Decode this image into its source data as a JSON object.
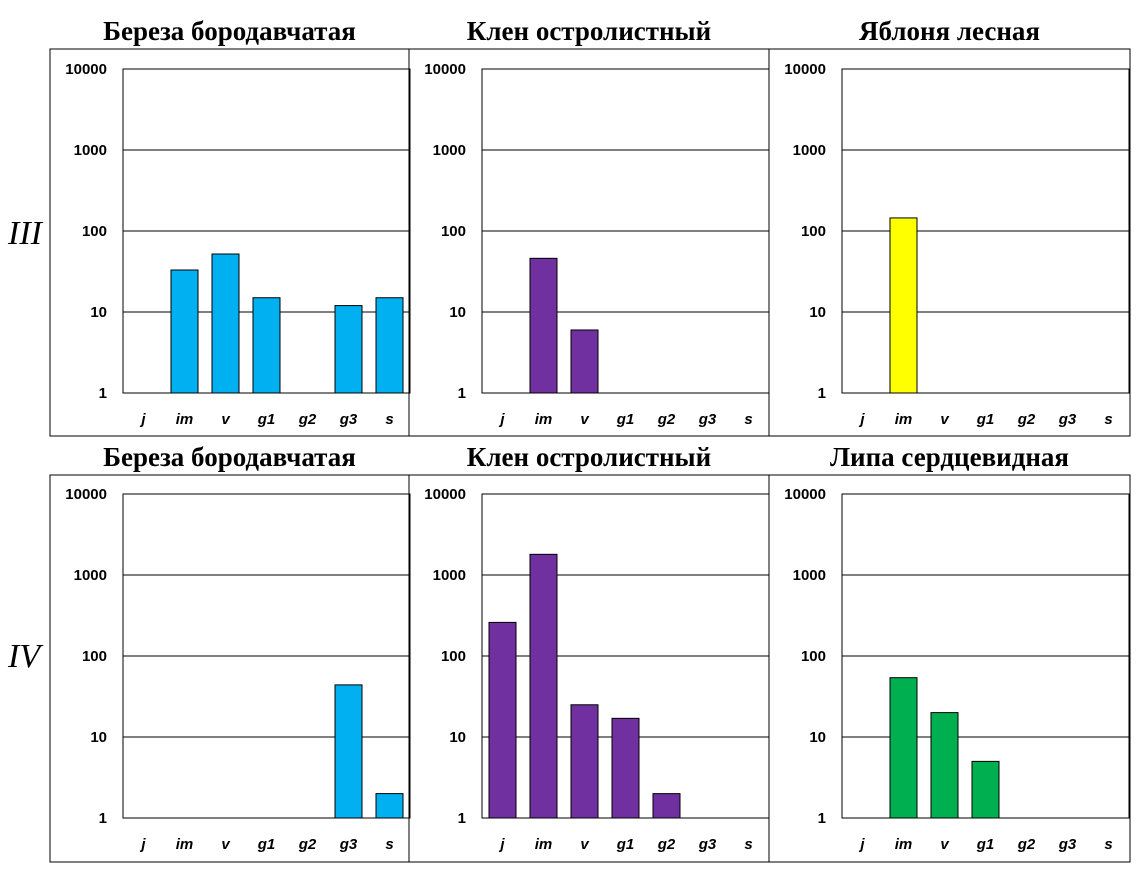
{
  "row_labels": [
    "III",
    "IV"
  ],
  "colors": {
    "blue": "#00b0f0",
    "purple": "#7030a0",
    "yellow": "#ffff00",
    "green": "#00b050",
    "bar_border": "#000000"
  },
  "chart_data": [
    {
      "type": "bar",
      "row": "III",
      "title": "Береза бородавчатая",
      "categories": [
        "j",
        "im",
        "v",
        "g1",
        "g2",
        "g3",
        "s"
      ],
      "values": [
        0,
        33,
        52,
        15,
        0,
        12,
        15
      ],
      "y_scale": "log",
      "ylim": [
        1,
        10000
      ],
      "yticks": [
        "1",
        "10",
        "100",
        "1000",
        "10000"
      ],
      "grid": true,
      "color": "#00b0f0"
    },
    {
      "type": "bar",
      "row": "III",
      "title": "Клен остролистный",
      "categories": [
        "j",
        "im",
        "v",
        "g1",
        "g2",
        "g3",
        "s"
      ],
      "values": [
        0,
        46,
        6,
        0,
        0,
        0,
        0
      ],
      "y_scale": "log",
      "ylim": [
        1,
        10000
      ],
      "yticks": [
        "1",
        "10",
        "100",
        "1000",
        "10000"
      ],
      "grid": true,
      "color": "#7030a0"
    },
    {
      "type": "bar",
      "row": "III",
      "title": "Яблоня лесная",
      "categories": [
        "j",
        "im",
        "v",
        "g1",
        "g2",
        "g3",
        "s"
      ],
      "values": [
        0,
        145,
        0,
        0,
        0,
        0,
        0
      ],
      "y_scale": "log",
      "ylim": [
        1,
        10000
      ],
      "yticks": [
        "1",
        "10",
        "100",
        "1000",
        "10000"
      ],
      "grid": true,
      "color": "#ffff00"
    },
    {
      "type": "bar",
      "row": "IV",
      "title": "Береза бородавчатая",
      "categories": [
        "j",
        "im",
        "v",
        "g1",
        "g2",
        "g3",
        "s"
      ],
      "values": [
        0,
        0,
        0,
        0,
        0,
        44,
        2
      ],
      "y_scale": "log",
      "ylim": [
        1,
        10000
      ],
      "yticks": [
        "1",
        "10",
        "100",
        "1000",
        "10000"
      ],
      "grid": true,
      "color": "#00b0f0"
    },
    {
      "type": "bar",
      "row": "IV",
      "title": "Клен остролистный",
      "categories": [
        "j",
        "im",
        "v",
        "g1",
        "g2",
        "g3",
        "s"
      ],
      "values": [
        260,
        1800,
        25,
        17,
        2,
        0,
        0
      ],
      "y_scale": "log",
      "ylim": [
        1,
        10000
      ],
      "yticks": [
        "1",
        "10",
        "100",
        "1000",
        "10000"
      ],
      "grid": true,
      "color": "#7030a0"
    },
    {
      "type": "bar",
      "row": "IV",
      "title": "Липа сердцевидная",
      "categories": [
        "j",
        "im",
        "v",
        "g1",
        "g2",
        "g3",
        "s"
      ],
      "values": [
        0,
        54,
        20,
        5,
        0,
        0,
        0
      ],
      "y_scale": "log",
      "ylim": [
        1,
        10000
      ],
      "yticks": [
        "1",
        "10",
        "100",
        "1000",
        "10000"
      ],
      "grid": true,
      "color": "#00b050"
    }
  ]
}
